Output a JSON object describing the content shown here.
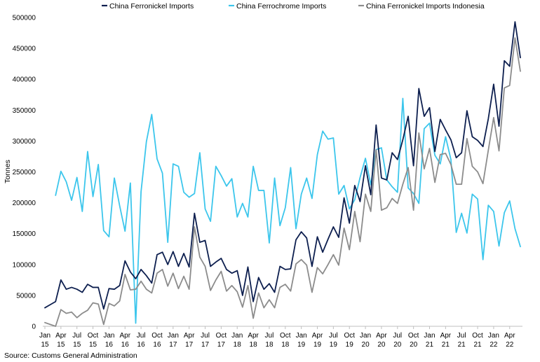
{
  "chart_data": {
    "type": "line",
    "ylabel": "Tonnes",
    "ylim": [
      0,
      500000
    ],
    "yticks": [
      "0",
      "50000",
      "100000",
      "150000",
      "200000",
      "250000",
      "300000",
      "350000",
      "400000",
      "450000",
      "500000"
    ],
    "xticks": [
      {
        "month": "Jan",
        "year": "15",
        "index": 0
      },
      {
        "month": "Apr",
        "year": "15",
        "index": 3
      },
      {
        "month": "Jul",
        "year": "15",
        "index": 6
      },
      {
        "month": "Oct",
        "year": "15",
        "index": 9
      },
      {
        "month": "Jan",
        "year": "16",
        "index": 12
      },
      {
        "month": "Apr",
        "year": "16",
        "index": 15
      },
      {
        "month": "Jul",
        "year": "16",
        "index": 18
      },
      {
        "month": "Oct",
        "year": "16",
        "index": 21
      },
      {
        "month": "Jan",
        "year": "17",
        "index": 24
      },
      {
        "month": "Apr",
        "year": "17",
        "index": 27
      },
      {
        "month": "Jul",
        "year": "17",
        "index": 30
      },
      {
        "month": "Oct",
        "year": "17",
        "index": 33
      },
      {
        "month": "Jan",
        "year": "18",
        "index": 36
      },
      {
        "month": "Apr",
        "year": "18",
        "index": 39
      },
      {
        "month": "Jul",
        "year": "18",
        "index": 42
      },
      {
        "month": "Oct",
        "year": "18",
        "index": 45
      },
      {
        "month": "Jan",
        "year": "19",
        "index": 48
      },
      {
        "month": "Apr",
        "year": "19",
        "index": 51
      },
      {
        "month": "Jul",
        "year": "19",
        "index": 54
      },
      {
        "month": "Oct",
        "year": "19",
        "index": 57
      },
      {
        "month": "Jan",
        "year": "20",
        "index": 60
      },
      {
        "month": "Apr",
        "year": "20",
        "index": 63
      },
      {
        "month": "Jul",
        "year": "20",
        "index": 66
      },
      {
        "month": "Oct",
        "year": "20",
        "index": 69
      },
      {
        "month": "Jan",
        "year": "21",
        "index": 72
      },
      {
        "month": "Apr",
        "year": "21",
        "index": 75
      },
      {
        "month": "Jul",
        "year": "21",
        "index": 78
      },
      {
        "month": "Oct",
        "year": "21",
        "index": 81
      },
      {
        "month": "Jan",
        "year": "22",
        "index": 84
      },
      {
        "month": "Apr",
        "year": "22",
        "index": 87
      }
    ],
    "legend_position": "top",
    "series": [
      {
        "name": "China Ferronickel Imports",
        "color": "#0d1f4f",
        "values": [
          30000,
          35000,
          40000,
          75000,
          60000,
          63000,
          60000,
          55000,
          68000,
          63000,
          63000,
          28000,
          61000,
          60000,
          66000,
          106000,
          88000,
          77000,
          92000,
          82000,
          70000,
          116000,
          120000,
          100000,
          121000,
          97000,
          118000,
          96000,
          183000,
          136000,
          139000,
          97000,
          104000,
          110000,
          92000,
          86000,
          90000,
          50000,
          96000,
          40000,
          79000,
          60000,
          69000,
          55000,
          97000,
          92000,
          93000,
          140000,
          153000,
          143000,
          97000,
          145000,
          120000,
          141000,
          161000,
          144000,
          208000,
          167000,
          228000,
          202000,
          260000,
          213000,
          326000,
          240000,
          237000,
          281000,
          270000,
          302000,
          340000,
          260000,
          385000,
          340000,
          354000,
          283000,
          335000,
          318000,
          302000,
          273000,
          281000,
          349000,
          307000,
          301000,
          291000,
          336000,
          392000,
          324000,
          430000,
          421000,
          493000,
          435000
        ]
      },
      {
        "name": "China Ferrochrome Imports",
        "color": "#3cc6ec",
        "values": [
          null,
          null,
          212000,
          251000,
          234000,
          204000,
          241000,
          186000,
          283000,
          210000,
          262000,
          155000,
          145000,
          240000,
          195000,
          154000,
          232000,
          5000,
          218000,
          299000,
          343000,
          271000,
          248000,
          136000,
          263000,
          259000,
          217000,
          209000,
          215000,
          281000,
          190000,
          170000,
          259000,
          244000,
          227000,
          239000,
          177000,
          199000,
          177000,
          259000,
          220000,
          220000,
          135000,
          240000,
          163000,
          192000,
          257000,
          158000,
          214000,
          240000,
          207000,
          278000,
          316000,
          303000,
          305000,
          214000,
          228000,
          190000,
          205000,
          241000,
          272000,
          229000,
          286000,
          289000,
          237000,
          226000,
          217000,
          369000,
          224000,
          215000,
          199000,
          320000,
          329000,
          277000,
          263000,
          307000,
          270000,
          152000,
          183000,
          151000,
          214000,
          206000,
          108000,
          196000,
          186000,
          130000,
          184000,
          203000,
          158000,
          129000
        ]
      },
      {
        "name": "China Ferronickel Imports Indonesia",
        "color": "#8c8c8c",
        "values": [
          6000,
          3000,
          0,
          27000,
          21000,
          23000,
          14000,
          21000,
          26000,
          38000,
          36000,
          3000,
          37000,
          33000,
          41000,
          84000,
          59000,
          60000,
          73000,
          60000,
          54000,
          86000,
          92000,
          65000,
          86000,
          61000,
          81000,
          60000,
          161000,
          112000,
          97000,
          58000,
          75000,
          89000,
          57000,
          66000,
          56000,
          31000,
          66000,
          13000,
          54000,
          30000,
          43000,
          30000,
          63000,
          68000,
          57000,
          101000,
          108000,
          99000,
          55000,
          95000,
          85000,
          100000,
          116000,
          99000,
          159000,
          124000,
          186000,
          137000,
          214000,
          186000,
          286000,
          188000,
          192000,
          207000,
          199000,
          230000,
          257000,
          188000,
          313000,
          255000,
          288000,
          233000,
          278000,
          280000,
          262000,
          230000,
          230000,
          304000,
          259000,
          250000,
          231000,
          285000,
          338000,
          284000,
          386000,
          390000,
          467000,
          413000
        ]
      }
    ]
  },
  "source": "Source: Customs General Administration"
}
